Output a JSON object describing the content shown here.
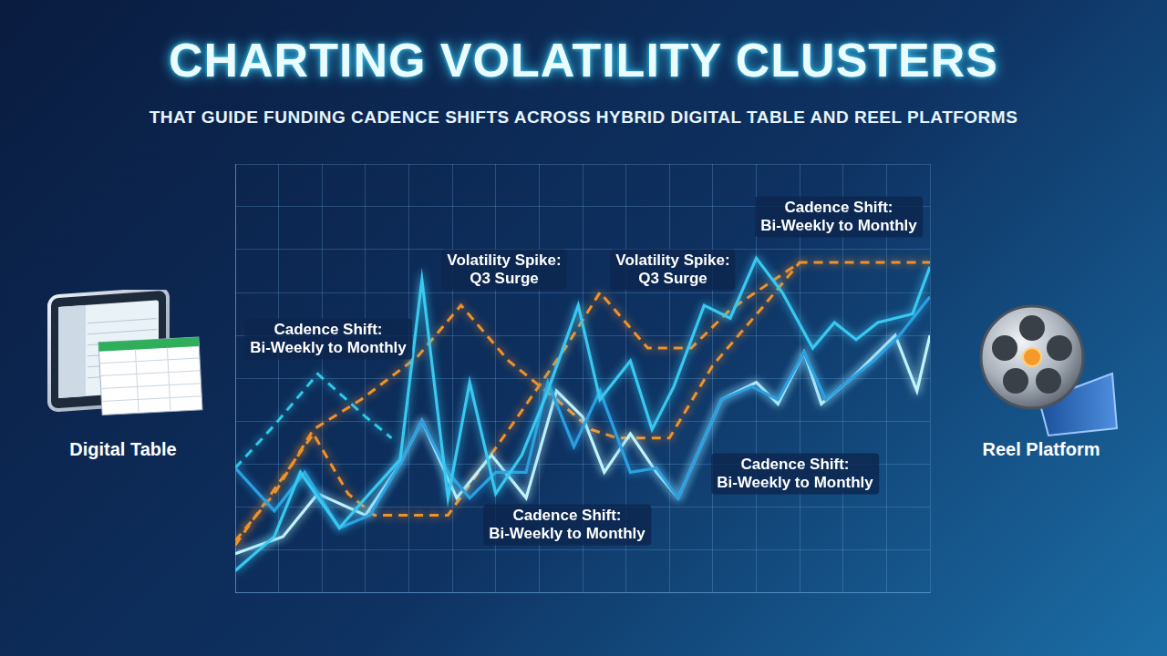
{
  "chart_data": {
    "type": "line",
    "title": "CHARTING VOLATILITY CLUSTERS",
    "subtitle": "THAT GUIDE FUNDING CADENCE SHIFTS ACROSS HYBRID DIGITAL TABLE AND REEL PLATFORMS",
    "platform_labels": [
      "Digital Table",
      "Reel Platform"
    ],
    "annotations": [
      [
        "Cadence Shift:",
        "Bi-Weekly to Monthly"
      ],
      [
        "Volatility Spike:",
        "Q3 Surge"
      ],
      [
        "Volatility Spike:",
        "Q3 Surge"
      ],
      [
        "Cadence Shift:",
        "Bi-Weekly to Monthly"
      ],
      [
        "Cadence Shift:",
        "Bi-Weekly to Monthly"
      ],
      [
        "Cadence Shift:",
        "Bi-Weekly to Monthly"
      ]
    ],
    "xlim": [
      0,
      16
    ],
    "xticks": [
      0,
      1,
      2,
      3,
      4,
      5,
      6,
      7,
      8,
      9,
      10,
      11,
      12,
      13,
      14,
      15,
      16
    ],
    "ylim": [
      0,
      10
    ],
    "yticks": [
      0,
      1,
      2,
      3,
      4,
      5,
      6,
      7,
      8,
      9,
      10
    ],
    "grid": true,
    "tick_labels": false,
    "marker": "none",
    "series": [
      {
        "color": "#39c8f0",
        "line_style": "solid",
        "x": [
          0,
          0.9,
          1.5,
          2.4,
          3.0,
          3.8,
          4.3,
          4.9,
          5.4,
          6.0,
          6.6,
          7.2,
          7.9,
          8.4,
          9.1,
          9.6,
          10.1,
          10.8,
          11.4,
          12.0,
          12.6,
          13.3,
          13.8,
          14.3,
          14.8,
          15.6,
          16
        ],
        "values": [
          0.5,
          1.3,
          2.8,
          1.5,
          2.2,
          3.1,
          7.3,
          2.2,
          4.9,
          2.3,
          3.2,
          4.7,
          6.7,
          4.5,
          5.4,
          3.8,
          4.8,
          6.7,
          6.4,
          7.8,
          7.0,
          5.7,
          6.3,
          5.9,
          6.3,
          6.5,
          7.6
        ]
      },
      {
        "color": "#2b9fe0",
        "line_style": "solid",
        "x": [
          0,
          0.9,
          1.6,
          2.4,
          3.1,
          3.8,
          4.3,
          4.9,
          5.4,
          6.0,
          6.7,
          7.2,
          7.8,
          8.4,
          9.1,
          9.7,
          10.2,
          11.2,
          11.9,
          12.5,
          13.1,
          13.6,
          14.2,
          14.7,
          15.3,
          16
        ],
        "values": [
          2.9,
          1.9,
          2.8,
          1.5,
          1.8,
          3.0,
          4.0,
          2.8,
          2.2,
          2.8,
          2.8,
          4.9,
          3.4,
          4.7,
          2.8,
          2.9,
          2.2,
          4.5,
          4.8,
          4.5,
          5.6,
          4.5,
          5.0,
          5.4,
          6.0,
          6.9
        ]
      },
      {
        "color": "#bff4ff",
        "line_style": "solid",
        "x": [
          0,
          1.1,
          1.9,
          3.0,
          3.8,
          4.3,
          5.1,
          5.9,
          6.7,
          7.4,
          8.0,
          8.5,
          9.1,
          9.7,
          10.2,
          11.2,
          12.0,
          12.5,
          13.1,
          13.5,
          14.2,
          14.6,
          15.2,
          15.7,
          16
        ],
        "values": [
          0.9,
          1.3,
          2.3,
          1.8,
          3.0,
          4.0,
          2.2,
          3.2,
          2.2,
          4.7,
          4.1,
          2.8,
          3.7,
          2.8,
          2.2,
          4.5,
          4.9,
          4.4,
          5.6,
          4.4,
          5.0,
          5.4,
          6.0,
          4.7,
          6.0
        ]
      },
      {
        "color": "#f0922b",
        "line_style": "dashed",
        "x": [
          0,
          1.8,
          2.6,
          3.2,
          4.9,
          6.3,
          7.6,
          8.4,
          9.5,
          10.5,
          11.4,
          13.0,
          16
        ],
        "values": [
          1.1,
          3.7,
          2.3,
          1.8,
          1.8,
          3.8,
          5.7,
          7.0,
          5.7,
          5.7,
          6.6,
          7.7,
          7.7
        ]
      },
      {
        "color": "#f0922b",
        "line_style": "dashed",
        "x": [
          0,
          0.9,
          1.8,
          2.9,
          4.2,
          5.2,
          6.3,
          7.4,
          8.2,
          8.8,
          10.0,
          11.0,
          12.1,
          13.0
        ],
        "values": [
          1.2,
          2.3,
          3.8,
          4.5,
          5.5,
          6.7,
          5.4,
          4.5,
          3.8,
          3.6,
          3.6,
          5.3,
          6.6,
          7.7
        ]
      },
      {
        "color": "#2ec8e8",
        "line_style": "dashed",
        "x": [
          0,
          0.9,
          1.9,
          3.0,
          3.6
        ],
        "values": [
          2.9,
          3.9,
          5.1,
          4.1,
          3.6
        ]
      }
    ]
  }
}
